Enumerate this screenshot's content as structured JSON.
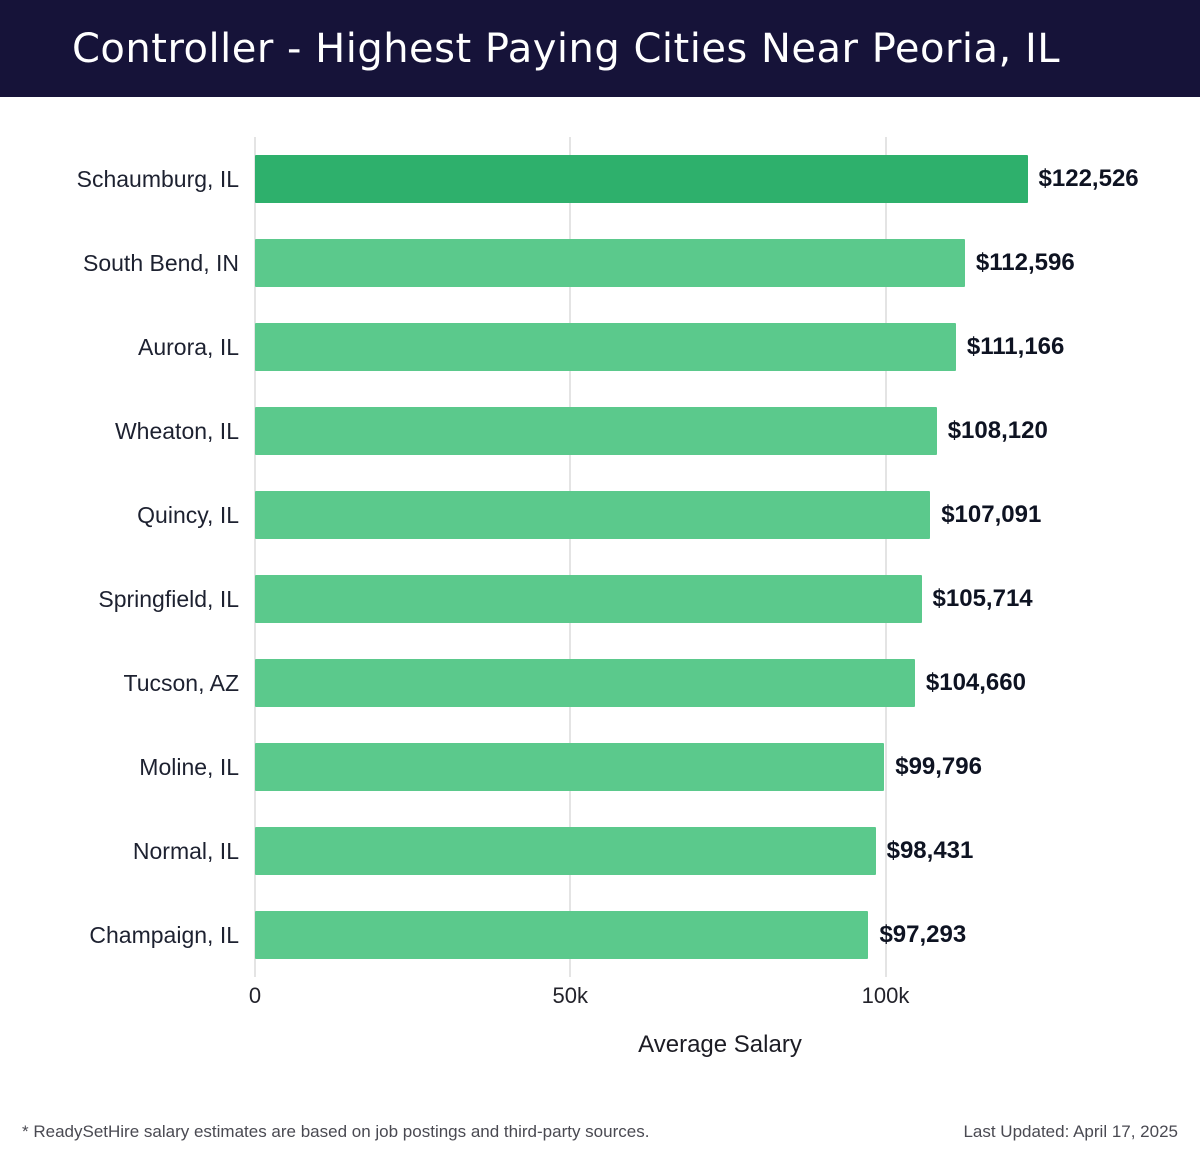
{
  "header": {
    "title": "Controller - Highest Paying Cities Near Peoria, IL",
    "bg_color": "#161339",
    "text_color": "#ffffff"
  },
  "chart_data": {
    "type": "bar",
    "orientation": "horizontal",
    "title": "Controller - Highest Paying Cities Near Peoria, IL",
    "categories": [
      "Schaumburg, IL",
      "South Bend, IN",
      "Aurora, IL",
      "Wheaton, IL",
      "Quincy, IL",
      "Springfield, IL",
      "Tucson, AZ",
      "Moline, IL",
      "Normal, IL",
      "Champaign, IL"
    ],
    "values": [
      122526,
      112596,
      111166,
      108120,
      107091,
      105714,
      104660,
      99796,
      98431,
      97293
    ],
    "value_labels": [
      "$122,526",
      "$112,596",
      "$111,166",
      "$108,120",
      "$107,091",
      "$105,714",
      "$104,660",
      "$99,796",
      "$98,431",
      "$97,293"
    ],
    "xlabel": "Average Salary",
    "ylabel": "",
    "xlim": [
      0,
      147500
    ],
    "ticks": [
      {
        "value": 0,
        "label": "0"
      },
      {
        "value": 50000,
        "label": "50k"
      },
      {
        "value": 100000,
        "label": "100k"
      }
    ],
    "grid": true,
    "gridline_color": "#e4e4e4",
    "bar_color": "#5bc98c",
    "highlight_color": "#2eb06c",
    "highlight_index": 0,
    "legend": "none"
  },
  "footer": {
    "note": "* ReadySetHire salary estimates are based on job postings and third-party sources.",
    "updated": "Last Updated: April 17, 2025"
  }
}
